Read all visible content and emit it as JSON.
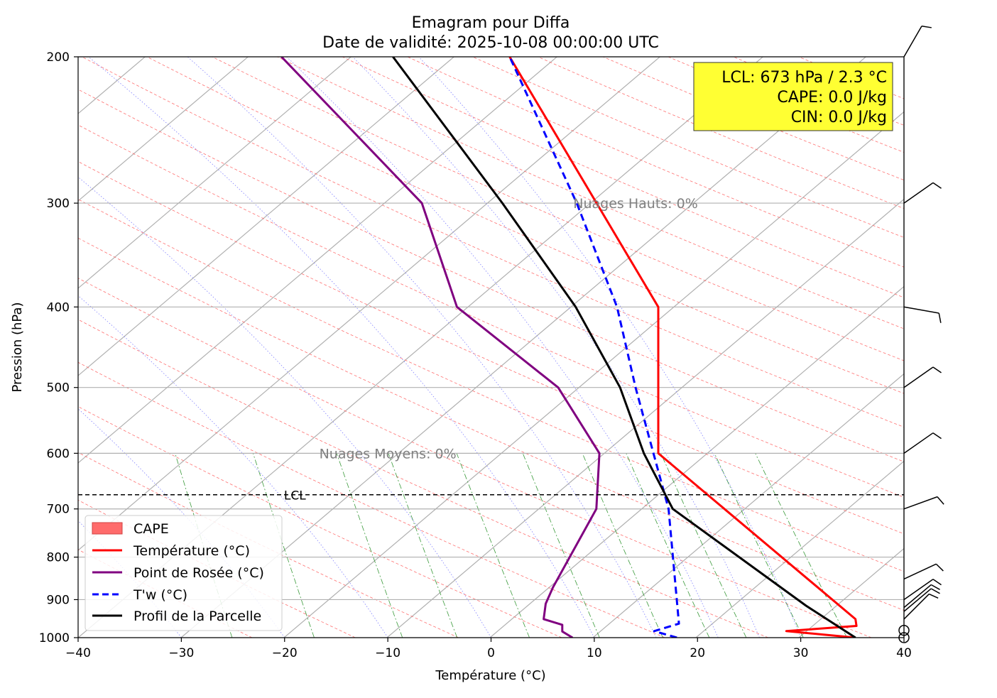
{
  "chart_data": {
    "type": "line",
    "title": "Emagram pour Diffa",
    "subtitle": "Date de validité: 2025-10-08 00:00:00 UTC",
    "xlabel": "Température (°C)",
    "ylabel": "Pression (hPa)",
    "xlim": [
      -40,
      40
    ],
    "ylim": [
      1000,
      200
    ],
    "y_scale": "log",
    "x_ticks": [
      -40,
      -30,
      -20,
      -10,
      0,
      10,
      20,
      30,
      40
    ],
    "x_tick_labels": [
      "−40",
      "−30",
      "−20",
      "−10",
      "0",
      "10",
      "20",
      "30",
      "40"
    ],
    "y_ticks": [
      1000,
      900,
      800,
      700,
      600,
      500,
      400,
      300,
      200
    ],
    "y_tick_labels": [
      "1000",
      "900",
      "800",
      "700",
      "600",
      "500",
      "400",
      "300",
      "200"
    ],
    "grid": true,
    "legend_position": "lower-left",
    "series": [
      {
        "name": "Température (°C)",
        "color": "#ff0000",
        "style": "solid",
        "points": [
          [
            35.3,
            1000
          ],
          [
            28.6,
            982
          ],
          [
            35.4,
            968
          ],
          [
            35.3,
            950
          ],
          [
            16.2,
            600
          ],
          [
            16.2,
            400
          ],
          [
            1.8,
            200
          ]
        ]
      },
      {
        "name": "Point de Rosée (°C)",
        "color": "#800080",
        "style": "solid",
        "points": [
          [
            7.9,
            1000
          ],
          [
            6.9,
            983
          ],
          [
            6.9,
            965
          ],
          [
            5.1,
            950
          ],
          [
            5.3,
            910
          ],
          [
            6.0,
            870
          ],
          [
            10.2,
            700
          ],
          [
            10.5,
            600
          ],
          [
            6.5,
            500
          ],
          [
            -3.3,
            400
          ],
          [
            -6.7,
            300
          ],
          [
            -20.3,
            200
          ]
        ]
      },
      {
        "name": "T'w (°C)",
        "color": "#0000ff",
        "style": "dashed",
        "points": [
          [
            18.0,
            1000
          ],
          [
            15.8,
            982
          ],
          [
            18.2,
            962
          ],
          [
            17.2,
            700
          ],
          [
            14.0,
            500
          ],
          [
            12.2,
            400
          ],
          [
            8.3,
            300
          ],
          [
            1.8,
            200
          ]
        ]
      },
      {
        "name": "Profil de la Parcelle",
        "color": "#000000",
        "style": "solid",
        "points": [
          [
            35.3,
            1000
          ],
          [
            30.5,
            915
          ],
          [
            17.6,
            700
          ],
          [
            14.8,
            600
          ],
          [
            12.5,
            500
          ],
          [
            8.2,
            400
          ],
          [
            1.1,
            300
          ],
          [
            -9.5,
            200
          ]
        ]
      }
    ],
    "legend": [
      {
        "label": "CAPE",
        "color": "#ff6b6b",
        "kind": "patch"
      },
      {
        "label": "Température (°C)",
        "color": "#ff0000",
        "kind": "solid"
      },
      {
        "label": "Point de Rosée (°C)",
        "color": "#800080",
        "kind": "solid"
      },
      {
        "label": "T'w (°C)",
        "color": "#0000ff",
        "kind": "dashed"
      },
      {
        "label": "Profil de la Parcelle",
        "color": "#000000",
        "kind": "solid"
      }
    ],
    "lcl": {
      "label": "LCL",
      "pressure": 673
    },
    "annotations": [
      {
        "text": "Nuages Hauts: 0%",
        "x": 14,
        "p": 300
      },
      {
        "text": "Nuages Moyens: 0%",
        "x": -10,
        "p": 600
      }
    ],
    "info_box": {
      "lines": [
        "LCL: 673 hPa / 2.3 °C",
        "CAPE: 0.0 J/kg",
        "CIN: 0.0 J/kg"
      ],
      "background": "#ffff33"
    },
    "wind_barbs_pressure": [
      200,
      300,
      400,
      500,
      600,
      700,
      850,
      900,
      920,
      930,
      950,
      980,
      1000
    ]
  }
}
